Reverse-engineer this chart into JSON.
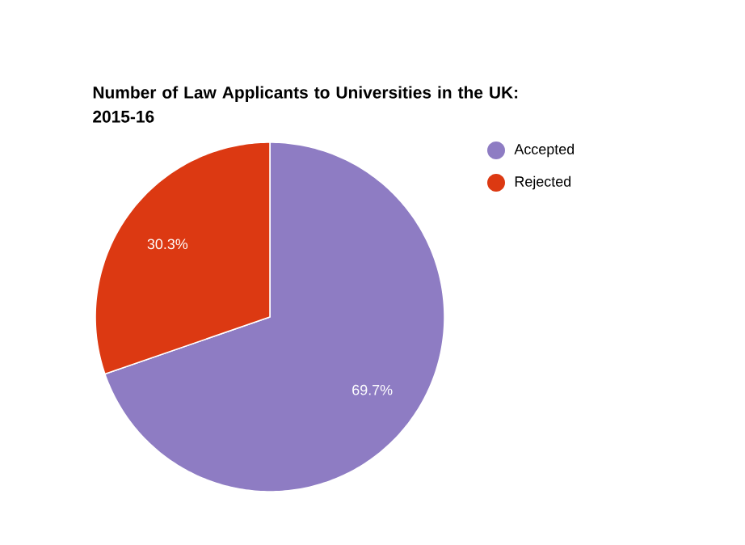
{
  "chart_data": {
    "type": "pie",
    "title": "Number of Law Applicants to Universities in the UK: 2015-16",
    "categories": [
      "Accepted",
      "Rejected"
    ],
    "values": [
      69.7,
      30.3
    ],
    "colors": [
      "#8e7cc3",
      "#dc3912"
    ],
    "value_labels": [
      "69.7%",
      "30.3%"
    ],
    "legend": "top right"
  }
}
